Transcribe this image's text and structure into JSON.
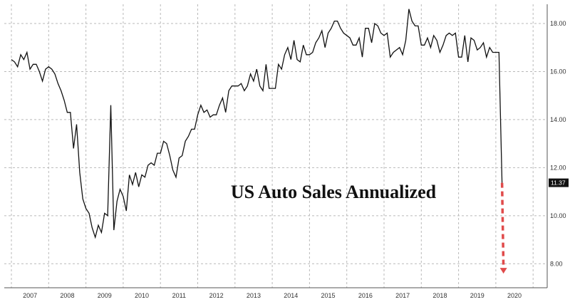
{
  "chart_data": {
    "type": "line",
    "title": "US Auto Sales Annualized",
    "xlabel": "",
    "ylabel": "",
    "ylim": [
      7,
      18.8
    ],
    "grid": true,
    "y_axis_side": "right",
    "y_ticks": [
      {
        "value": 8,
        "label": "8.00"
      },
      {
        "value": 10,
        "label": "10.00"
      },
      {
        "value": 12,
        "label": "12.00"
      },
      {
        "value": 14,
        "label": "14.00"
      },
      {
        "value": 16,
        "label": "16.00"
      },
      {
        "value": 18,
        "label": "18.00"
      }
    ],
    "x_ticks": [
      "2007",
      "2008",
      "2009",
      "2010",
      "2011",
      "2012",
      "2013",
      "2014",
      "2015",
      "2016",
      "2017",
      "2018",
      "2019",
      "2020"
    ],
    "last_value_label": "11.37",
    "series": [
      {
        "color": "#111111",
        "x": [
          "2007-01",
          "2007-02",
          "2007-03",
          "2007-04",
          "2007-05",
          "2007-06",
          "2007-07",
          "2007-08",
          "2007-09",
          "2007-10",
          "2007-11",
          "2007-12",
          "2008-01",
          "2008-02",
          "2008-03",
          "2008-04",
          "2008-05",
          "2008-06",
          "2008-07",
          "2008-08",
          "2008-09",
          "2008-10",
          "2008-11",
          "2008-12",
          "2009-01",
          "2009-02",
          "2009-03",
          "2009-04",
          "2009-05",
          "2009-06",
          "2009-07",
          "2009-08",
          "2009-09",
          "2009-10",
          "2009-11",
          "2009-12",
          "2010-01",
          "2010-02",
          "2010-03",
          "2010-04",
          "2010-05",
          "2010-06",
          "2010-07",
          "2010-08",
          "2010-09",
          "2010-10",
          "2010-11",
          "2010-12",
          "2011-01",
          "2011-02",
          "2011-03",
          "2011-04",
          "2011-05",
          "2011-06",
          "2011-07",
          "2011-08",
          "2011-09",
          "2011-10",
          "2011-11",
          "2011-12",
          "2012-01",
          "2012-02",
          "2012-03",
          "2012-04",
          "2012-05",
          "2012-06",
          "2012-07",
          "2012-08",
          "2012-09",
          "2012-10",
          "2012-11",
          "2012-12",
          "2013-01",
          "2013-02",
          "2013-03",
          "2013-04",
          "2013-05",
          "2013-06",
          "2013-07",
          "2013-08",
          "2013-09",
          "2013-10",
          "2013-11",
          "2013-12",
          "2014-01",
          "2014-02",
          "2014-03",
          "2014-04",
          "2014-05",
          "2014-06",
          "2014-07",
          "2014-08",
          "2014-09",
          "2014-10",
          "2014-11",
          "2014-12",
          "2015-01",
          "2015-02",
          "2015-03",
          "2015-04",
          "2015-05",
          "2015-06",
          "2015-07",
          "2015-08",
          "2015-09",
          "2015-10",
          "2015-11",
          "2015-12",
          "2016-01",
          "2016-02",
          "2016-03",
          "2016-04",
          "2016-05",
          "2016-06",
          "2016-07",
          "2016-08",
          "2016-09",
          "2016-10",
          "2016-11",
          "2016-12",
          "2017-01",
          "2017-02",
          "2017-03",
          "2017-04",
          "2017-05",
          "2017-06",
          "2017-07",
          "2017-08",
          "2017-09",
          "2017-10",
          "2017-11",
          "2017-12",
          "2018-01",
          "2018-02",
          "2018-03",
          "2018-04",
          "2018-05",
          "2018-06",
          "2018-07",
          "2018-08",
          "2018-09",
          "2018-10",
          "2018-11",
          "2018-12",
          "2019-01",
          "2019-02",
          "2019-03",
          "2019-04",
          "2019-05",
          "2019-06",
          "2019-07",
          "2019-08",
          "2019-09",
          "2019-10",
          "2019-11",
          "2019-12",
          "2020-01",
          "2020-02",
          "2020-03"
        ],
        "values": [
          16.5,
          16.4,
          16.2,
          16.7,
          16.5,
          16.8,
          16.1,
          16.3,
          16.3,
          16.0,
          15.6,
          16.1,
          16.2,
          16.1,
          15.9,
          15.5,
          15.2,
          14.8,
          14.3,
          14.3,
          12.8,
          13.8,
          11.8,
          10.7,
          10.3,
          10.1,
          9.5,
          9.1,
          9.6,
          9.3,
          10.1,
          10.0,
          14.6,
          9.4,
          10.6,
          11.1,
          10.8,
          10.2,
          11.7,
          11.3,
          11.8,
          11.2,
          11.7,
          11.6,
          12.1,
          12.2,
          12.1,
          12.6,
          12.6,
          13.1,
          13.0,
          12.5,
          11.9,
          11.6,
          12.4,
          12.5,
          13.1,
          13.3,
          13.6,
          13.6,
          14.2,
          14.6,
          14.3,
          14.4,
          14.1,
          14.2,
          14.2,
          14.6,
          14.9,
          14.3,
          15.2,
          15.4,
          15.4,
          15.4,
          15.5,
          15.2,
          15.4,
          15.9,
          15.6,
          16.1,
          15.4,
          15.2,
          16.3,
          15.3,
          15.3,
          15.3,
          16.3,
          16.1,
          16.7,
          17.0,
          16.5,
          17.3,
          16.5,
          16.4,
          17.1,
          16.7,
          16.7,
          16.8,
          17.2,
          17.4,
          17.7,
          17.0,
          17.6,
          17.8,
          18.1,
          18.1,
          17.8,
          17.6,
          17.5,
          17.4,
          17.1,
          17.1,
          17.4,
          16.6,
          17.8,
          17.8,
          17.2,
          18.0,
          17.9,
          17.6,
          17.5,
          17.6,
          16.6,
          16.8,
          16.9,
          17.0,
          16.7,
          17.3,
          18.6,
          18.1,
          17.9,
          17.9,
          17.1,
          17.1,
          17.4,
          17.0,
          17.5,
          17.3,
          16.8,
          17.1,
          17.5,
          17.6,
          17.5,
          17.6,
          16.6,
          16.6,
          17.5,
          16.4,
          17.4,
          17.3,
          16.9,
          17.0,
          17.2,
          16.6,
          17.0,
          16.8,
          16.8,
          16.8,
          11.37
        ]
      }
    ],
    "projection": {
      "color": "#e04a4a",
      "from_x": "2020-03",
      "from_value": 11.37,
      "to_x": "2020-04",
      "to_value": 7.65
    }
  }
}
